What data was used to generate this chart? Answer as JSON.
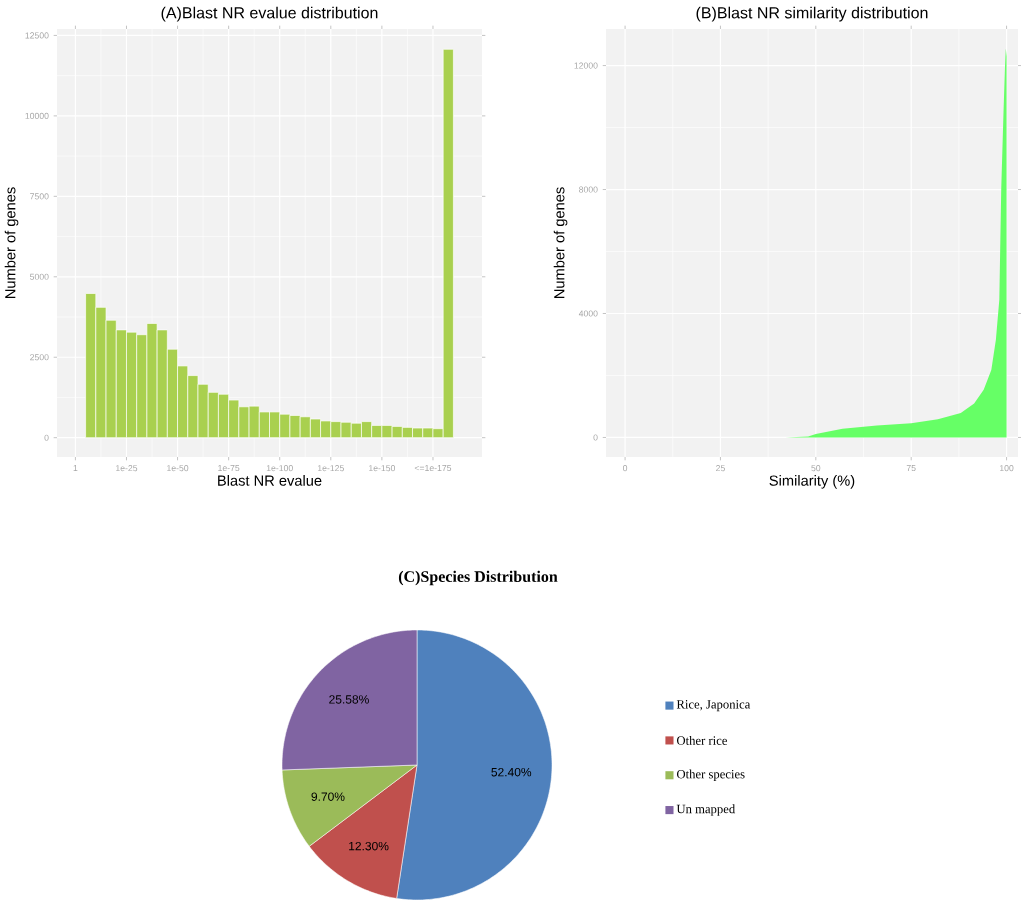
{
  "chart_data": [
    {
      "type": "histogram",
      "title": "(A)Blast NR evalue distribution",
      "xlabel": "Blast NR evalue",
      "ylabel": "Number of genes",
      "color": "#a9d04f",
      "grid": true,
      "log": "x",
      "bins": [
        1e-05,
        1e-10,
        1e-15,
        1e-20,
        1e-25,
        1e-30,
        1e-35,
        1e-40,
        1e-45,
        1e-50,
        1e-55,
        1e-60,
        1e-65,
        1e-70,
        1e-75,
        1e-80,
        1e-85,
        1e-90,
        1e-95,
        1e-100,
        1e-105,
        1e-110,
        1e-115,
        1e-120,
        1e-125,
        1e-130,
        1e-135,
        1e-140,
        1e-145,
        1e-150,
        1e-155,
        1e-160,
        1e-165,
        1e-170,
        1e-175,
        1e-180,
        1e-185
      ],
      "values": [
        4480,
        4050,
        3650,
        3350,
        3280,
        3200,
        3550,
        3350,
        2750,
        2230,
        1930,
        1660,
        1410,
        1350,
        1170,
        960,
        980,
        800,
        800,
        730,
        690,
        650,
        580,
        520,
        500,
        480,
        450,
        500,
        380,
        380,
        350,
        320,
        300,
        300,
        280,
        12070
      ],
      "xlim": [
        1000000000.0,
        1e-199
      ],
      "ylim": [
        -600,
        12700
      ],
      "xticks": [
        1,
        1e-25,
        1e-50,
        1e-75,
        1e-100,
        1e-125,
        1e-150,
        {
          "value": 1e-175,
          "label": "<=1e-175"
        }
      ],
      "yticks": [
        0,
        2500,
        5000,
        7500,
        10000,
        12500
      ]
    },
    {
      "type": "area",
      "title": "(B)Blast NR similarity distribution",
      "xlabel": "Similarity (%)",
      "ylabel": "Number of genes",
      "color": "#66ff66",
      "grid": true,
      "x": [
        0,
        42,
        48,
        50,
        57,
        66,
        75,
        82,
        88,
        91.5,
        94,
        96,
        97.2,
        98.1,
        98.6,
        99.2,
        99.6,
        99.8,
        100
      ],
      "values": [
        0,
        0,
        30,
        110,
        280,
        390,
        460,
        590,
        790,
        1100,
        1540,
        2180,
        3150,
        4440,
        8000,
        10500,
        12000,
        12550,
        12300
      ],
      "xlim": [
        -5,
        103
      ],
      "ylim": [
        -630,
        13180
      ],
      "xticks": [
        0,
        25,
        50,
        75,
        100
      ],
      "yticks": [
        0,
        4000,
        8000,
        12000
      ]
    },
    {
      "type": "pie",
      "title": "(C)Species Distribution",
      "legend": "right",
      "categories": [
        "Rice, Japonica",
        "Other rice",
        "Other species",
        "Un mapped"
      ],
      "values": [
        52.4,
        12.3,
        9.7,
        25.58
      ],
      "value_labels": [
        "52.40%",
        "12.30%",
        "9.70%",
        "25.58%"
      ],
      "colors": [
        "#4f81bd",
        "#c0504d",
        "#9bbb59",
        "#8064a2"
      ]
    }
  ]
}
